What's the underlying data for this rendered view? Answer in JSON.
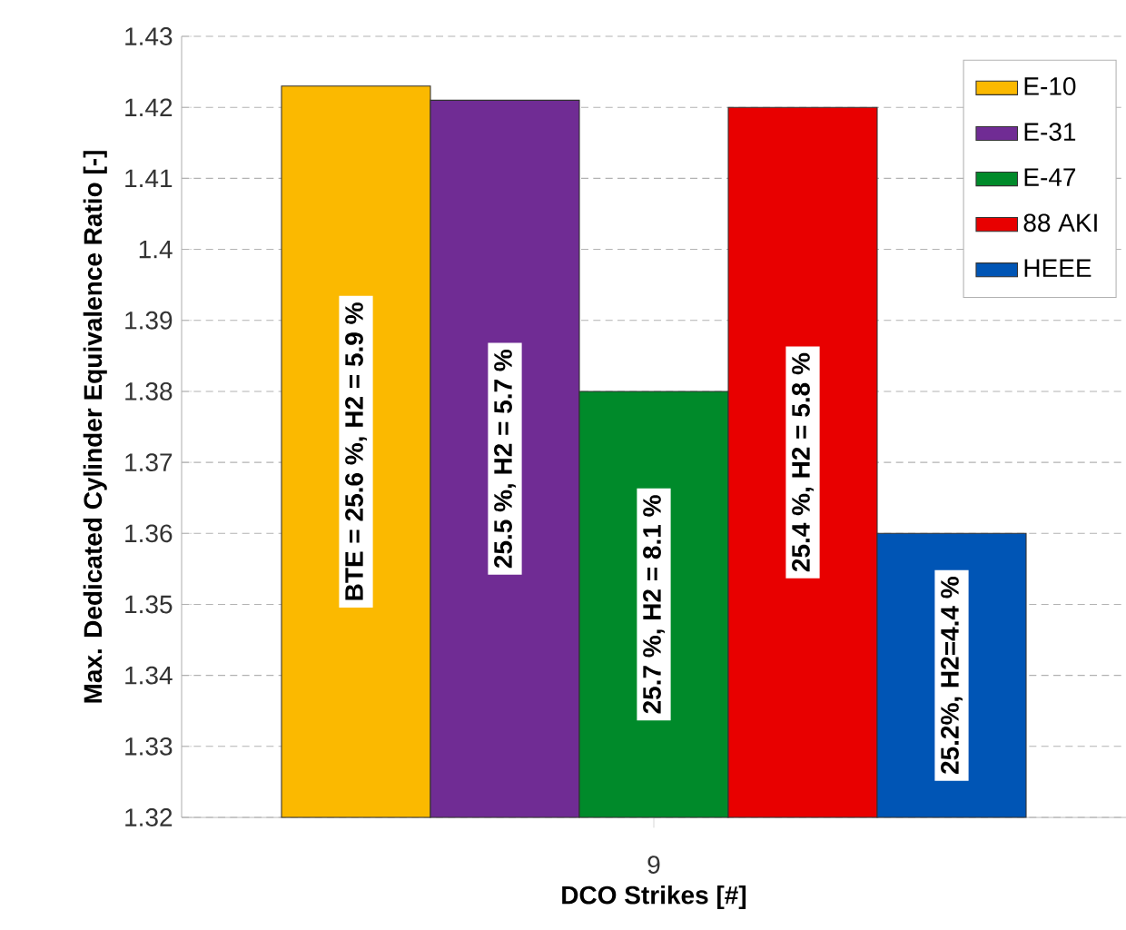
{
  "chart_data": {
    "type": "bar",
    "xlabel": "DCO Strikes [#]",
    "ylabel": "Max. Dedicated Cylinder Equivalence Ratio [-]",
    "categories": [
      "9"
    ],
    "series": [
      {
        "name": "E-10",
        "color": "#fbb900",
        "values": [
          1.423
        ]
      },
      {
        "name": "E-31",
        "color": "#702c94",
        "values": [
          1.421
        ]
      },
      {
        "name": "E-47",
        "color": "#008a2a",
        "values": [
          1.38
        ]
      },
      {
        "name": "88 AKI",
        "color": "#e80000",
        "values": [
          1.42
        ]
      },
      {
        "name": "HEEE",
        "color": "#0055b5",
        "values": [
          1.36
        ]
      }
    ],
    "annotations": [
      "BTE = 25.6 %, H2 = 5.9 %",
      "25.5 %, H2 = 5.7 %",
      "25.7 %, H2 = 8.1 %",
      "25.4 %, H2 = 5.8 %",
      "25.2%, H2=4.4 %"
    ],
    "ylim": [
      1.32,
      1.43
    ],
    "yticks": [
      1.32,
      1.33,
      1.34,
      1.35,
      1.36,
      1.37,
      1.38,
      1.39,
      1.4,
      1.41,
      1.42,
      1.43
    ],
    "grid": "y",
    "legend": "top right"
  }
}
